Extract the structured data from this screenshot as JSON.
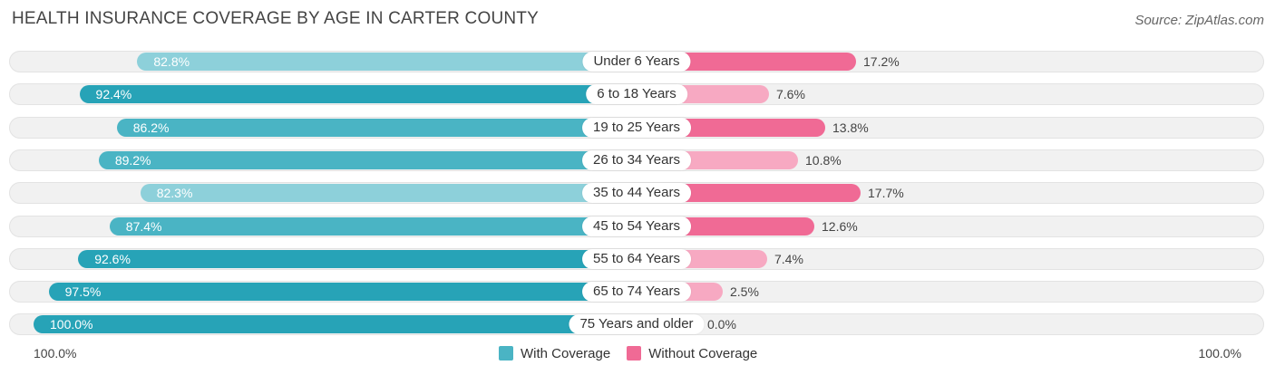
{
  "header": {
    "title": "HEALTH INSURANCE COVERAGE BY AGE IN CARTER COUNTY",
    "source": "Source: ZipAtlas.com"
  },
  "colors": {
    "with_coverage": "#4ab4c4",
    "with_coverage_strong": "#27a3b7",
    "with_coverage_light": "#8dd0da",
    "without_coverage": "#f06a95",
    "without_coverage_light": "#f7a9c2"
  },
  "chart_data": {
    "type": "bar",
    "orientation": "horizontal-diverging",
    "title": "HEALTH INSURANCE COVERAGE BY AGE IN CARTER COUNTY",
    "categories": [
      "Under 6 Years",
      "6 to 18 Years",
      "19 to 25 Years",
      "26 to 34 Years",
      "35 to 44 Years",
      "45 to 54 Years",
      "55 to 64 Years",
      "65 to 74 Years",
      "75 Years and older"
    ],
    "series": [
      {
        "name": "With Coverage",
        "values": [
          82.8,
          92.4,
          86.2,
          89.2,
          82.3,
          87.4,
          92.6,
          97.5,
          100.0
        ],
        "labels": [
          "82.8%",
          "92.4%",
          "86.2%",
          "89.2%",
          "82.3%",
          "87.4%",
          "92.6%",
          "97.5%",
          "100.0%"
        ]
      },
      {
        "name": "Without Coverage",
        "values": [
          17.2,
          7.6,
          13.8,
          10.8,
          17.7,
          12.6,
          7.4,
          2.5,
          0.0
        ],
        "labels": [
          "17.2%",
          "7.6%",
          "13.8%",
          "10.8%",
          "17.7%",
          "12.6%",
          "7.4%",
          "2.5%",
          "0.0%"
        ]
      }
    ],
    "xlim": [
      -100,
      100
    ],
    "axis_labels": {
      "left": "100.0%",
      "right": "100.0%"
    },
    "legend": [
      "With Coverage",
      "Without Coverage"
    ],
    "legend_position": "bottom-center"
  }
}
